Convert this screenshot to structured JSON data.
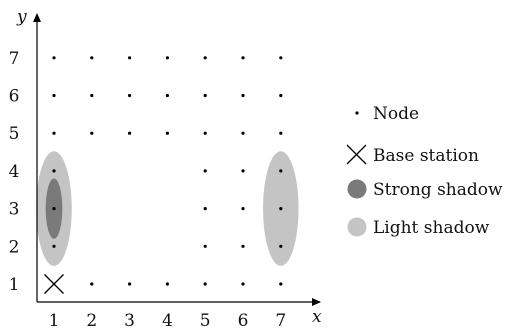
{
  "axes": {
    "x_label": "x",
    "y_label": "y",
    "x_ticks": [
      "1",
      "2",
      "3",
      "4",
      "5",
      "6",
      "7"
    ],
    "y_ticks": [
      "1",
      "2",
      "3",
      "4",
      "5",
      "6",
      "7"
    ]
  },
  "colors": {
    "strong_shadow": "#7a7a7a",
    "light_shadow": "#c4c4c4",
    "node": "#000000",
    "axis": "#000000"
  },
  "nodes": [
    {
      "x": 2,
      "y": 1
    },
    {
      "x": 3,
      "y": 1
    },
    {
      "x": 4,
      "y": 1
    },
    {
      "x": 5,
      "y": 1
    },
    {
      "x": 6,
      "y": 1
    },
    {
      "x": 7,
      "y": 1
    },
    {
      "x": 1,
      "y": 2
    },
    {
      "x": 5,
      "y": 2
    },
    {
      "x": 6,
      "y": 2
    },
    {
      "x": 7,
      "y": 2
    },
    {
      "x": 1,
      "y": 3
    },
    {
      "x": 5,
      "y": 3
    },
    {
      "x": 6,
      "y": 3
    },
    {
      "x": 7,
      "y": 3
    },
    {
      "x": 1,
      "y": 4
    },
    {
      "x": 5,
      "y": 4
    },
    {
      "x": 6,
      "y": 4
    },
    {
      "x": 7,
      "y": 4
    },
    {
      "x": 1,
      "y": 5
    },
    {
      "x": 2,
      "y": 5
    },
    {
      "x": 3,
      "y": 5
    },
    {
      "x": 4,
      "y": 5
    },
    {
      "x": 5,
      "y": 5
    },
    {
      "x": 6,
      "y": 5
    },
    {
      "x": 7,
      "y": 5
    },
    {
      "x": 1,
      "y": 6
    },
    {
      "x": 2,
      "y": 6
    },
    {
      "x": 3,
      "y": 6
    },
    {
      "x": 4,
      "y": 6
    },
    {
      "x": 5,
      "y": 6
    },
    {
      "x": 6,
      "y": 6
    },
    {
      "x": 7,
      "y": 6
    },
    {
      "x": 1,
      "y": 7
    },
    {
      "x": 2,
      "y": 7
    },
    {
      "x": 3,
      "y": 7
    },
    {
      "x": 4,
      "y": 7
    },
    {
      "x": 5,
      "y": 7
    },
    {
      "x": 6,
      "y": 7
    },
    {
      "x": 7,
      "y": 7
    }
  ],
  "base_station": {
    "x": 1,
    "y": 1
  },
  "shadows": [
    {
      "type": "light",
      "cx": 1,
      "cy": 3,
      "rx": 0.47,
      "ry": 1.52
    },
    {
      "type": "strong",
      "cx": 1,
      "cy": 3,
      "rx": 0.22,
      "ry": 0.8
    },
    {
      "type": "light",
      "cx": 7,
      "cy": 3,
      "rx": 0.47,
      "ry": 1.52
    }
  ],
  "legend": [
    {
      "symbol": "node",
      "label": "Node"
    },
    {
      "symbol": "base",
      "label": "Base station"
    },
    {
      "symbol": "strong",
      "label": "Strong shadow"
    },
    {
      "symbol": "light",
      "label": "Light shadow"
    }
  ]
}
